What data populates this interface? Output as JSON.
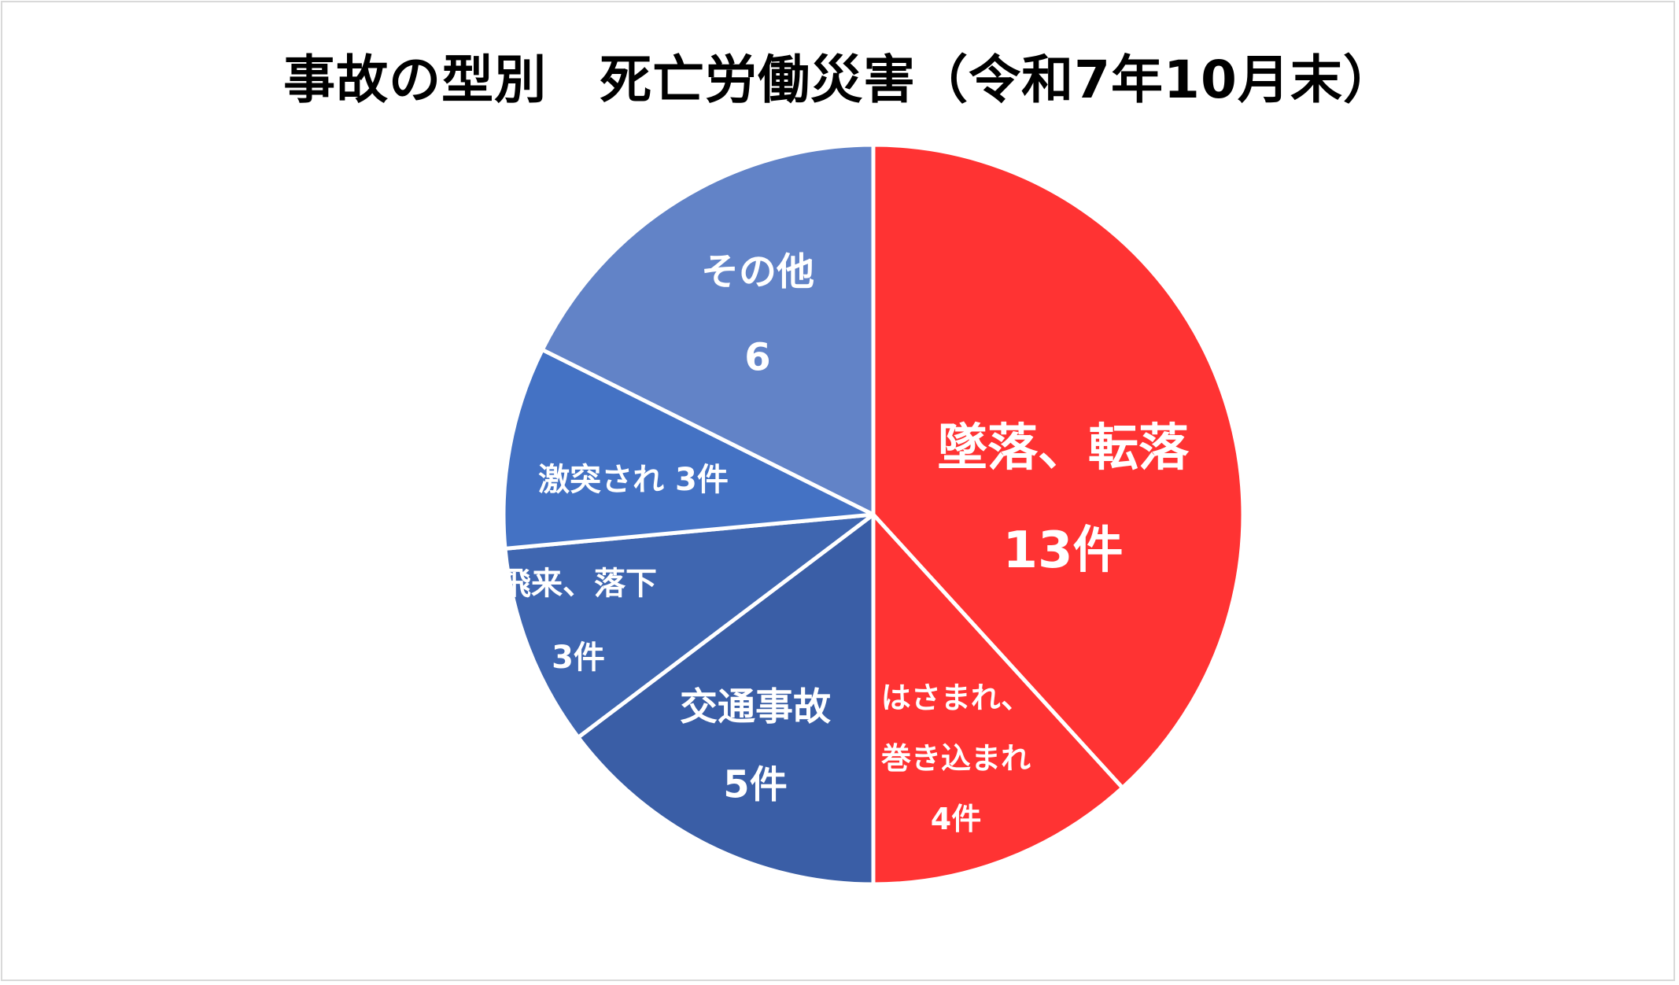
{
  "chart_data": {
    "type": "pie",
    "title": "事故の型別　死亡労働災害（令和7年10月末）",
    "start": "12 o'clock",
    "direction": "clockwise",
    "border_color": "#ffffff",
    "slices": [
      {
        "category": "墜落、転落",
        "value": 13,
        "color": "#ff3333",
        "label_lines": [
          "墜落、転落",
          "13件"
        ]
      },
      {
        "category": "はさまれ、巻き込まれ",
        "value": 4,
        "color": "#ff3333",
        "label_lines": [
          "はさまれ、",
          "巻き込まれ",
          "4件"
        ]
      },
      {
        "category": "交通事故",
        "value": 5,
        "color": "#3a5ea6",
        "label_lines": [
          "交通事故",
          "5件"
        ]
      },
      {
        "category": "飛来、落下",
        "value": 3,
        "color": "#3f66b0",
        "label_lines": [
          "飛来、落下",
          "3件"
        ]
      },
      {
        "category": "激突され",
        "value": 3,
        "color": "#4472c4",
        "label_lines": [
          "激突され 3件"
        ]
      },
      {
        "category": "その他",
        "value": 6,
        "color": "#6283c7",
        "label_lines": [
          "その他",
          "6"
        ]
      }
    ]
  }
}
